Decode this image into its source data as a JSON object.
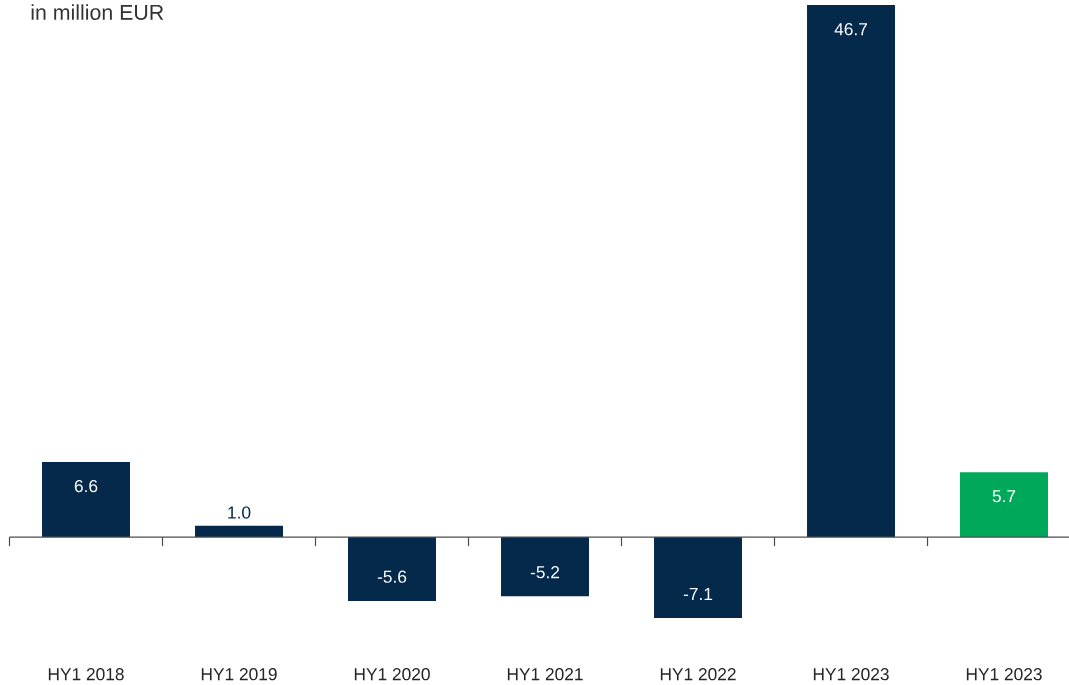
{
  "chart_data": {
    "type": "bar",
    "title": "in million EUR",
    "categories": [
      "HY1 2018",
      "HY1 2019",
      "HY1 2020",
      "HY1 2021",
      "HY1 2022",
      "HY1 2023",
      "HY1 2023"
    ],
    "values": [
      6.6,
      1.0,
      -5.6,
      -5.2,
      -7.1,
      46.7,
      5.7
    ],
    "value_labels": [
      "6.6",
      "1.0",
      "-5.6",
      "-5.2",
      "-7.1",
      "46.7",
      "5.7"
    ],
    "colors": [
      "#05294b",
      "#05294b",
      "#05294b",
      "#05294b",
      "#05294b",
      "#05294b",
      "#00a85a"
    ]
  }
}
